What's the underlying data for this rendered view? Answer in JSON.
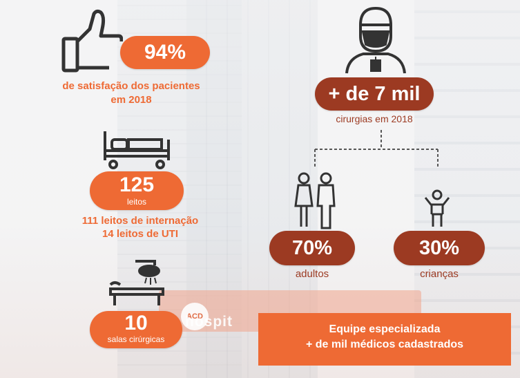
{
  "satisfaction": {
    "value": "94%",
    "caption_line1": "de satisfação dos pacientes",
    "caption_line2": "em 2018"
  },
  "beds": {
    "value": "125",
    "unit": "leitos",
    "detail_line1": "111 leitos de internação",
    "detail_line2": "14 leitos de UTI"
  },
  "rooms": {
    "value": "10",
    "unit": "salas cirúrgicas"
  },
  "surgeries": {
    "value": "+ de 7 mil",
    "caption": "cirurgias em 2018"
  },
  "adults": {
    "value": "70%",
    "caption": "adultos"
  },
  "children": {
    "value": "30%",
    "caption": "crianças"
  },
  "team": {
    "line1": "Equipe especializada",
    "line2": "+ de mil médicos cadastrados"
  },
  "sign": {
    "text": "hospit",
    "logo": "ACD"
  },
  "colors": {
    "orange": "#ee6a34",
    "brown": "#9c3a22"
  },
  "icons": [
    "thumbs-up-icon",
    "hospital-bed-icon",
    "surgery-table-icon",
    "surgeon-icon",
    "adults-icon",
    "child-icon"
  ]
}
